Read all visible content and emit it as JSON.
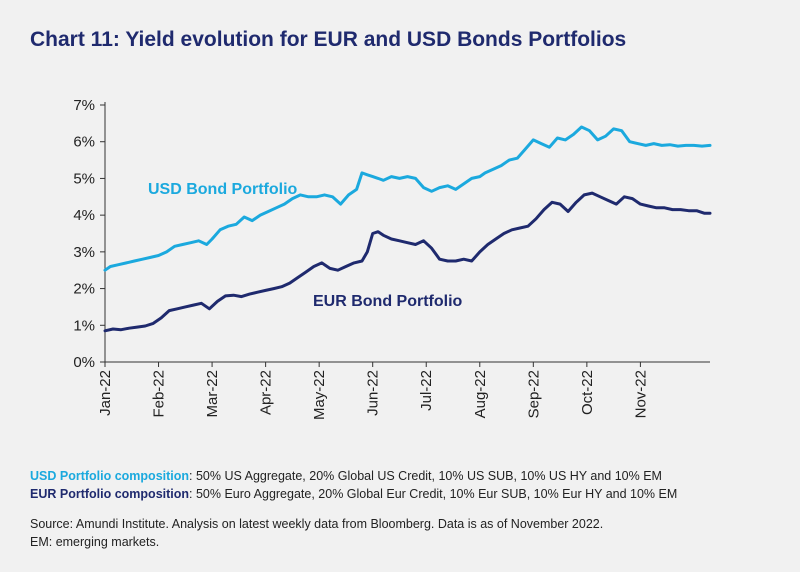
{
  "title": "Chart 11: Yield evolution for EUR and USD Bonds Portfolios",
  "chart_data": {
    "type": "line",
    "title": "Chart 11: Yield evolution for EUR and USD Bonds Portfolios",
    "xlabel": "",
    "ylabel": "",
    "x_ticks": [
      "Jan-22",
      "Feb-22",
      "Mar-22",
      "Apr-22",
      "May-22",
      "Jun-22",
      "Jul-22",
      "Aug-22",
      "Sep-22",
      "Oct-22",
      "Nov-22"
    ],
    "y_ticks": [
      "0%",
      "1%",
      "2%",
      "3%",
      "4%",
      "5%",
      "6%",
      "7%"
    ],
    "ylim": [
      0,
      7
    ],
    "x_unit": "months since Jan-22",
    "grid": false,
    "legend": "inline labels",
    "series": [
      {
        "name": "USD Bond Portfolio",
        "color": "#1ba9de",
        "x": [
          0,
          0.1,
          0.25,
          0.4,
          0.55,
          0.7,
          0.85,
          1.0,
          1.15,
          1.3,
          1.45,
          1.6,
          1.75,
          1.9,
          2.0,
          2.15,
          2.3,
          2.45,
          2.6,
          2.75,
          2.9,
          3.05,
          3.2,
          3.35,
          3.5,
          3.65,
          3.8,
          3.95,
          4.1,
          4.25,
          4.4,
          4.55,
          4.7,
          4.8,
          4.9,
          5.0,
          5.1,
          5.2,
          5.35,
          5.5,
          5.65,
          5.8,
          5.95,
          6.1,
          6.25,
          6.4,
          6.55,
          6.7,
          6.85,
          7.0,
          7.1,
          7.25,
          7.4,
          7.55,
          7.7,
          7.85,
          8.0,
          8.15,
          8.3,
          8.45,
          8.6,
          8.75,
          8.9,
          9.05,
          9.2,
          9.35,
          9.5,
          9.65,
          9.8,
          9.95,
          10.1,
          10.25,
          10.4,
          10.55,
          10.7,
          10.85,
          11.0,
          11.15,
          11.3
        ],
        "values": [
          2.5,
          2.6,
          2.65,
          2.7,
          2.75,
          2.8,
          2.85,
          2.9,
          3.0,
          3.15,
          3.2,
          3.25,
          3.3,
          3.2,
          3.35,
          3.6,
          3.7,
          3.75,
          3.95,
          3.85,
          4.0,
          4.1,
          4.2,
          4.3,
          4.45,
          4.55,
          4.5,
          4.5,
          4.55,
          4.5,
          4.3,
          4.55,
          4.7,
          5.15,
          5.1,
          5.05,
          5.0,
          4.95,
          5.05,
          5.0,
          5.05,
          5.0,
          4.75,
          4.65,
          4.75,
          4.8,
          4.7,
          4.85,
          5.0,
          5.05,
          5.15,
          5.25,
          5.35,
          5.5,
          5.55,
          5.8,
          6.05,
          5.95,
          5.85,
          6.1,
          6.05,
          6.2,
          6.4,
          6.3,
          6.05,
          6.15,
          6.35,
          6.3,
          6.0,
          5.95,
          5.9,
          5.95,
          5.9,
          5.92,
          5.88,
          5.9,
          5.9,
          5.88,
          5.9
        ],
        "label": "USD Bond Portfolio"
      },
      {
        "name": "EUR Bond Portfolio",
        "color": "#1f2a6e",
        "x": [
          0,
          0.15,
          0.3,
          0.45,
          0.6,
          0.75,
          0.9,
          1.05,
          1.2,
          1.35,
          1.5,
          1.65,
          1.8,
          1.95,
          2.1,
          2.25,
          2.4,
          2.55,
          2.7,
          2.85,
          3.0,
          3.15,
          3.3,
          3.45,
          3.6,
          3.75,
          3.9,
          4.05,
          4.2,
          4.35,
          4.5,
          4.65,
          4.8,
          4.9,
          5.0,
          5.1,
          5.2,
          5.35,
          5.5,
          5.65,
          5.8,
          5.95,
          6.1,
          6.25,
          6.4,
          6.55,
          6.7,
          6.85,
          7.0,
          7.15,
          7.3,
          7.45,
          7.6,
          7.75,
          7.9,
          8.05,
          8.2,
          8.35,
          8.5,
          8.65,
          8.8,
          8.95,
          9.1,
          9.25,
          9.4,
          9.55,
          9.7,
          9.85,
          10.0,
          10.15,
          10.3,
          10.45,
          10.6,
          10.75,
          10.9,
          11.05,
          11.2,
          11.3
        ],
        "values": [
          0.85,
          0.9,
          0.88,
          0.92,
          0.95,
          0.98,
          1.05,
          1.2,
          1.4,
          1.45,
          1.5,
          1.55,
          1.6,
          1.45,
          1.65,
          1.8,
          1.82,
          1.78,
          1.85,
          1.9,
          1.95,
          2.0,
          2.05,
          2.15,
          2.3,
          2.45,
          2.6,
          2.7,
          2.55,
          2.5,
          2.6,
          2.7,
          2.75,
          3.0,
          3.5,
          3.55,
          3.45,
          3.35,
          3.3,
          3.25,
          3.2,
          3.3,
          3.1,
          2.8,
          2.75,
          2.75,
          2.8,
          2.75,
          3.0,
          3.2,
          3.35,
          3.5,
          3.6,
          3.65,
          3.7,
          3.9,
          4.15,
          4.35,
          4.3,
          4.1,
          4.35,
          4.55,
          4.6,
          4.5,
          4.4,
          4.3,
          4.5,
          4.45,
          4.3,
          4.25,
          4.2,
          4.2,
          4.15,
          4.15,
          4.12,
          4.12,
          4.05,
          4.05
        ],
        "label": "EUR Bond Portfolio"
      }
    ]
  },
  "notes": {
    "usd_head": "USD Portfolio composition",
    "usd_text": ": 50% US Aggregate, 20% Global US Credit, 10% US SUB, 10% US HY and 10% EM",
    "eur_head": "EUR Portfolio composition",
    "eur_text": ": 50% Euro Aggregate, 20% Global Eur Credit, 10% Eur SUB, 10% Eur HY and 10% EM"
  },
  "source": {
    "line1": "Source: Amundi Institute. Analysis on latest weekly data from Bloomberg. Data is as of November 2022.",
    "line2": "EM: emerging markets."
  }
}
